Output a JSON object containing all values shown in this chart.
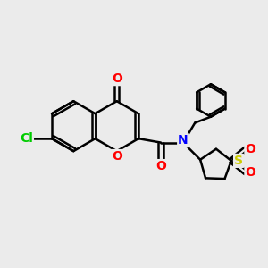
{
  "bg_color": "#ebebeb",
  "bond_color": "#000000",
  "bond_width": 1.8,
  "atom_colors": {
    "O": "#ff0000",
    "N": "#0000ff",
    "Cl": "#00cc00",
    "S": "#cccc00",
    "C": "#000000"
  },
  "font_size": 10,
  "figsize": [
    3.0,
    3.0
  ],
  "dpi": 100
}
